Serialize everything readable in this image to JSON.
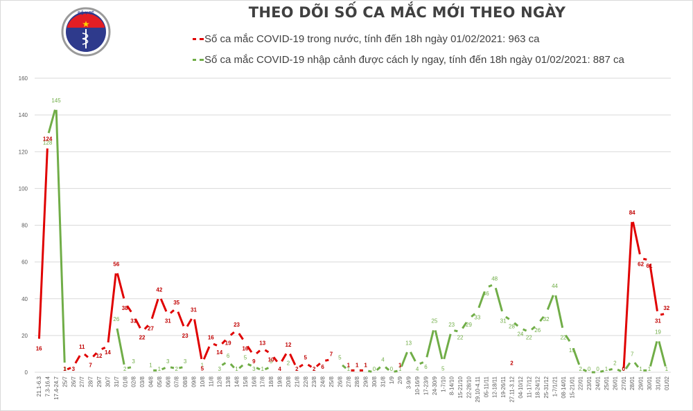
{
  "header": {
    "title": "THEO DÕI SỐ CA MẮC MỚI THEO NGÀY",
    "logo": {
      "top_text": "BỘ Y TẾ",
      "bottom_text": "MINISTRY OF HEALTH"
    }
  },
  "colors": {
    "domestic": "#e00000",
    "imported": "#70ad47",
    "grid": "#d9d9d9",
    "axis_text": "#595959"
  },
  "chart_data": {
    "type": "line",
    "title": "THEO DÕI SỐ CA MẮC MỚI THEO NGÀY",
    "xlabel": "",
    "ylabel": "",
    "ylim": [
      0,
      160
    ],
    "yticks": [
      0,
      20,
      40,
      60,
      80,
      100,
      120,
      140,
      160
    ],
    "grid": true,
    "legend_position": "top",
    "categories": [
      "21.1-6.3",
      "7.3-16.4",
      "17.4-24.7",
      "25/7",
      "26/7",
      "27/7",
      "28/7",
      "29/7",
      "30/7",
      "31/7",
      "01/8",
      "02/8",
      "03/8",
      "04/8",
      "05/8",
      "06/8",
      "07/8",
      "08/8",
      "09/8",
      "10/8",
      "11/8",
      "12/8",
      "13/8",
      "14/8",
      "15/8",
      "16/8",
      "17/8",
      "18/8",
      "19/8",
      "20/8",
      "21/8",
      "22/8",
      "23/8",
      "24/8",
      "25/8",
      "26/8",
      "27/8",
      "28/8",
      "29/8",
      "30/8",
      "31/8",
      "1/9",
      "2/9",
      "3-9/9",
      "10-16/9",
      "17-23/9",
      "24-30/9",
      "1-7/10",
      "8-14/10",
      "15-21/10",
      "22-28/10",
      "29.10-4.11",
      "05-11/11",
      "12-18/11",
      "19-26/11",
      "27.11-3.12",
      "04-10/12",
      "11-17/12",
      "18-24/12",
      "25-31/12",
      "1-7/1/21",
      "08-14/01",
      "15-21/01",
      "22/01",
      "23/01",
      "24/01",
      "25/01",
      "26/01",
      "27/01",
      "28/01",
      "29/01",
      "30/01",
      "31/01",
      "01/02"
    ],
    "series": [
      {
        "name": "Số ca mắc COVID-19 trong nước, tính đến 18h ngày 01/02/2021: 963 ca",
        "color": "#e00000",
        "values": [
          16,
          124,
          null,
          1,
          3,
          11,
          7,
          12,
          14,
          56,
          38,
          31,
          22,
          27,
          42,
          31,
          35,
          23,
          31,
          5,
          16,
          14,
          19,
          23,
          16,
          9,
          13,
          10,
          4,
          12,
          2,
          5,
          2,
          6,
          7,
          null,
          1,
          1,
          1,
          null,
          null,
          null,
          1,
          null,
          null,
          null,
          null,
          null,
          null,
          null,
          null,
          null,
          null,
          null,
          null,
          2,
          null,
          null,
          null,
          null,
          null,
          null,
          null,
          null,
          null,
          null,
          null,
          null,
          0,
          84,
          62,
          61,
          31,
          32
        ]
      },
      {
        "name": "Số ca mắc COVID-19 nhập cảnh được cách ly ngay, tính đến 18h ngày 01/02/2021: 887 ca",
        "color": "#70ad47",
        "values": [
          null,
          128,
          145,
          3,
          null,
          null,
          null,
          null,
          null,
          26,
          2,
          3,
          null,
          1,
          1,
          3,
          2,
          3,
          null,
          1,
          null,
          3,
          6,
          1,
          5,
          3,
          1,
          3,
          null,
          2,
          null,
          null,
          null,
          null,
          null,
          5,
          1,
          1,
          1,
          0,
          4,
          0,
          1,
          13,
          4,
          6,
          25,
          5,
          23,
          22,
          29,
          33,
          46,
          48,
          31,
          28,
          24,
          22,
          26,
          32,
          44,
          22,
          15,
          2,
          0,
          0,
          1,
          2,
          0,
          7,
          1,
          1,
          19,
          1
        ]
      }
    ]
  },
  "legend": [
    {
      "label": "Số ca mắc COVID-19 trong nước, tính đến 18h ngày 01/02/2021: 963 ca",
      "color": "#e00000"
    },
    {
      "label": "Số ca mắc COVID-19 nhập cảnh được cách ly ngay, tính đến 18h ngày 01/02/2021: 887 ca",
      "color": "#70ad47"
    }
  ]
}
